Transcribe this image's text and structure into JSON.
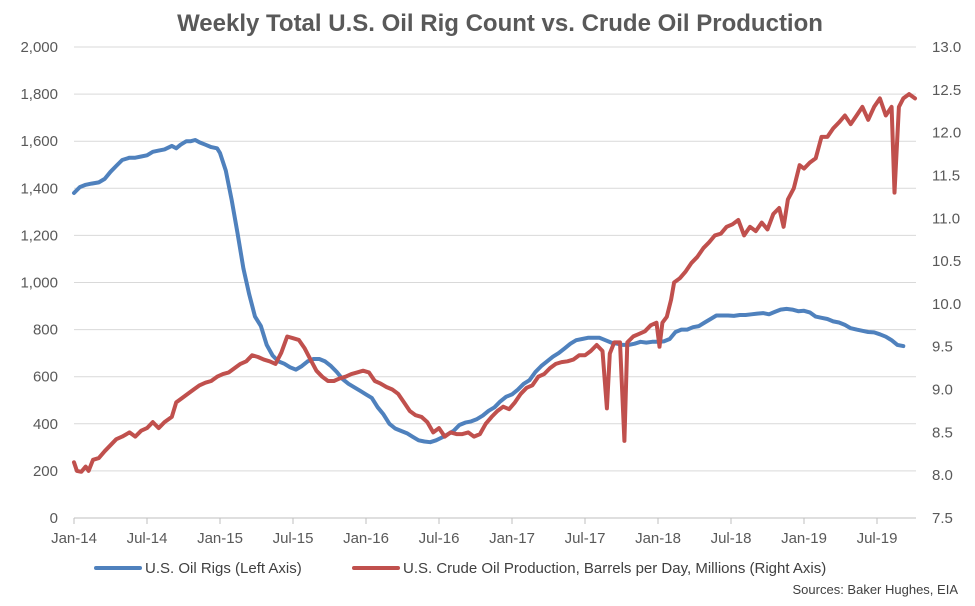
{
  "chart_data": {
    "type": "line",
    "title": "Weekly Total U.S. Oil Rig Count vs. Crude Oil Production",
    "source": "Sources: Baker Hughes, EIA",
    "x_ticks": [
      "Jan-14",
      "Jul-14",
      "Jan-15",
      "Jul-15",
      "Jan-16",
      "Jul-16",
      "Jan-17",
      "Jul-17",
      "Jan-18",
      "Jul-18",
      "Jan-19",
      "Jul-19"
    ],
    "x_range": [
      2014.0,
      2019.75
    ],
    "y_left": {
      "ticks": [
        "0",
        "200",
        "400",
        "600",
        "800",
        "1,000",
        "1,200",
        "1,400",
        "1,600",
        "1,800",
        "2,000"
      ],
      "range": [
        0,
        2000
      ]
    },
    "y_right": {
      "ticks": [
        "7.5",
        "8.0",
        "8.5",
        "9.0",
        "9.5",
        "10.0",
        "10.5",
        "11.0",
        "11.5",
        "12.0",
        "12.5",
        "13.0"
      ],
      "range": [
        7.5,
        13.0
      ]
    },
    "grid": true,
    "legend_position": "bottom",
    "series": [
      {
        "name": "U.S. Oil Rigs (Left Axis)",
        "axis": "left",
        "color": "#4F81BD",
        "points": [
          [
            2014.0,
            1380
          ],
          [
            2014.04,
            1405
          ],
          [
            2014.08,
            1415
          ],
          [
            2014.12,
            1420
          ],
          [
            2014.17,
            1425
          ],
          [
            2014.21,
            1440
          ],
          [
            2014.25,
            1470
          ],
          [
            2014.29,
            1495
          ],
          [
            2014.33,
            1520
          ],
          [
            2014.38,
            1530
          ],
          [
            2014.42,
            1530
          ],
          [
            2014.46,
            1535
          ],
          [
            2014.5,
            1540
          ],
          [
            2014.54,
            1555
          ],
          [
            2014.58,
            1560
          ],
          [
            2014.62,
            1565
          ],
          [
            2014.67,
            1580
          ],
          [
            2014.7,
            1570
          ],
          [
            2014.73,
            1585
          ],
          [
            2014.77,
            1600
          ],
          [
            2014.8,
            1600
          ],
          [
            2014.83,
            1605
          ],
          [
            2014.86,
            1595
          ],
          [
            2014.9,
            1585
          ],
          [
            2014.94,
            1575
          ],
          [
            2014.98,
            1570
          ],
          [
            2015.0,
            1550
          ],
          [
            2015.04,
            1475
          ],
          [
            2015.08,
            1350
          ],
          [
            2015.12,
            1210
          ],
          [
            2015.16,
            1060
          ],
          [
            2015.2,
            950
          ],
          [
            2015.24,
            855
          ],
          [
            2015.28,
            815
          ],
          [
            2015.32,
            735
          ],
          [
            2015.36,
            690
          ],
          [
            2015.4,
            665
          ],
          [
            2015.44,
            655
          ],
          [
            2015.48,
            640
          ],
          [
            2015.52,
            630
          ],
          [
            2015.56,
            645
          ],
          [
            2015.6,
            665
          ],
          [
            2015.64,
            675
          ],
          [
            2015.68,
            675
          ],
          [
            2015.72,
            665
          ],
          [
            2015.76,
            645
          ],
          [
            2015.8,
            620
          ],
          [
            2015.84,
            590
          ],
          [
            2015.88,
            570
          ],
          [
            2015.92,
            555
          ],
          [
            2015.96,
            540
          ],
          [
            2016.0,
            525
          ],
          [
            2016.04,
            510
          ],
          [
            2016.08,
            470
          ],
          [
            2016.12,
            440
          ],
          [
            2016.16,
            400
          ],
          [
            2016.2,
            380
          ],
          [
            2016.24,
            370
          ],
          [
            2016.28,
            360
          ],
          [
            2016.32,
            345
          ],
          [
            2016.36,
            330
          ],
          [
            2016.4,
            325
          ],
          [
            2016.44,
            322
          ],
          [
            2016.48,
            330
          ],
          [
            2016.52,
            342
          ],
          [
            2016.56,
            356
          ],
          [
            2016.6,
            370
          ],
          [
            2016.64,
            395
          ],
          [
            2016.68,
            405
          ],
          [
            2016.72,
            410
          ],
          [
            2016.76,
            420
          ],
          [
            2016.8,
            435
          ],
          [
            2016.84,
            455
          ],
          [
            2016.88,
            470
          ],
          [
            2016.92,
            495
          ],
          [
            2016.96,
            515
          ],
          [
            2017.0,
            525
          ],
          [
            2017.04,
            545
          ],
          [
            2017.08,
            570
          ],
          [
            2017.12,
            585
          ],
          [
            2017.16,
            620
          ],
          [
            2017.2,
            645
          ],
          [
            2017.24,
            665
          ],
          [
            2017.28,
            685
          ],
          [
            2017.32,
            700
          ],
          [
            2017.36,
            720
          ],
          [
            2017.4,
            740
          ],
          [
            2017.44,
            755
          ],
          [
            2017.48,
            760
          ],
          [
            2017.52,
            765
          ],
          [
            2017.56,
            765
          ],
          [
            2017.6,
            765
          ],
          [
            2017.64,
            755
          ],
          [
            2017.68,
            745
          ],
          [
            2017.72,
            740
          ],
          [
            2017.76,
            735
          ],
          [
            2017.8,
            735
          ],
          [
            2017.84,
            740
          ],
          [
            2017.88,
            748
          ],
          [
            2017.92,
            745
          ],
          [
            2017.96,
            748
          ],
          [
            2018.0,
            748
          ],
          [
            2018.04,
            750
          ],
          [
            2018.08,
            760
          ],
          [
            2018.12,
            790
          ],
          [
            2018.16,
            800
          ],
          [
            2018.2,
            800
          ],
          [
            2018.24,
            810
          ],
          [
            2018.28,
            815
          ],
          [
            2018.32,
            830
          ],
          [
            2018.36,
            845
          ],
          [
            2018.4,
            860
          ],
          [
            2018.44,
            860
          ],
          [
            2018.48,
            860
          ],
          [
            2018.52,
            858
          ],
          [
            2018.56,
            862
          ],
          [
            2018.6,
            862
          ],
          [
            2018.64,
            865
          ],
          [
            2018.68,
            868
          ],
          [
            2018.72,
            870
          ],
          [
            2018.76,
            865
          ],
          [
            2018.8,
            875
          ],
          [
            2018.84,
            885
          ],
          [
            2018.88,
            888
          ],
          [
            2018.92,
            885
          ],
          [
            2018.96,
            878
          ],
          [
            2019.0,
            880
          ],
          [
            2019.04,
            873
          ],
          [
            2019.08,
            855
          ],
          [
            2019.12,
            850
          ],
          [
            2019.16,
            845
          ],
          [
            2019.2,
            835
          ],
          [
            2019.24,
            830
          ],
          [
            2019.28,
            820
          ],
          [
            2019.32,
            806
          ],
          [
            2019.36,
            800
          ],
          [
            2019.4,
            795
          ],
          [
            2019.44,
            790
          ],
          [
            2019.48,
            788
          ],
          [
            2019.52,
            780
          ],
          [
            2019.56,
            770
          ],
          [
            2019.6,
            755
          ],
          [
            2019.64,
            735
          ],
          [
            2019.68,
            730
          ]
        ]
      },
      {
        "name": "U.S. Crude Oil Production, Barrels per Day, Millions (Right Axis)",
        "axis": "right",
        "color": "#C0504D",
        "points": [
          [
            2014.0,
            8.15
          ],
          [
            2014.02,
            8.05
          ],
          [
            2014.05,
            8.04
          ],
          [
            2014.08,
            8.1
          ],
          [
            2014.1,
            8.05
          ],
          [
            2014.13,
            8.18
          ],
          [
            2014.17,
            8.2
          ],
          [
            2014.21,
            8.28
          ],
          [
            2014.25,
            8.35
          ],
          [
            2014.29,
            8.42
          ],
          [
            2014.33,
            8.45
          ],
          [
            2014.38,
            8.5
          ],
          [
            2014.42,
            8.45
          ],
          [
            2014.46,
            8.52
          ],
          [
            2014.5,
            8.55
          ],
          [
            2014.54,
            8.62
          ],
          [
            2014.58,
            8.55
          ],
          [
            2014.62,
            8.62
          ],
          [
            2014.67,
            8.68
          ],
          [
            2014.7,
            8.85
          ],
          [
            2014.74,
            8.9
          ],
          [
            2014.78,
            8.95
          ],
          [
            2014.82,
            9.0
          ],
          [
            2014.86,
            9.05
          ],
          [
            2014.9,
            9.08
          ],
          [
            2014.94,
            9.1
          ],
          [
            2014.98,
            9.15
          ],
          [
            2015.02,
            9.18
          ],
          [
            2015.06,
            9.2
          ],
          [
            2015.1,
            9.25
          ],
          [
            2015.14,
            9.3
          ],
          [
            2015.18,
            9.33
          ],
          [
            2015.22,
            9.4
          ],
          [
            2015.26,
            9.38
          ],
          [
            2015.3,
            9.35
          ],
          [
            2015.34,
            9.33
          ],
          [
            2015.38,
            9.3
          ],
          [
            2015.42,
            9.43
          ],
          [
            2015.46,
            9.62
          ],
          [
            2015.5,
            9.6
          ],
          [
            2015.54,
            9.58
          ],
          [
            2015.58,
            9.48
          ],
          [
            2015.62,
            9.35
          ],
          [
            2015.66,
            9.22
          ],
          [
            2015.7,
            9.15
          ],
          [
            2015.74,
            9.1
          ],
          [
            2015.78,
            9.1
          ],
          [
            2015.82,
            9.13
          ],
          [
            2015.86,
            9.15
          ],
          [
            2015.9,
            9.18
          ],
          [
            2015.94,
            9.2
          ],
          [
            2015.98,
            9.22
          ],
          [
            2016.02,
            9.2
          ],
          [
            2016.06,
            9.1
          ],
          [
            2016.1,
            9.07
          ],
          [
            2016.14,
            9.03
          ],
          [
            2016.18,
            9.0
          ],
          [
            2016.22,
            8.95
          ],
          [
            2016.26,
            8.85
          ],
          [
            2016.3,
            8.75
          ],
          [
            2016.34,
            8.7
          ],
          [
            2016.38,
            8.68
          ],
          [
            2016.42,
            8.62
          ],
          [
            2016.46,
            8.5
          ],
          [
            2016.5,
            8.55
          ],
          [
            2016.54,
            8.45
          ],
          [
            2016.58,
            8.5
          ],
          [
            2016.62,
            8.48
          ],
          [
            2016.66,
            8.48
          ],
          [
            2016.7,
            8.5
          ],
          [
            2016.74,
            8.45
          ],
          [
            2016.78,
            8.48
          ],
          [
            2016.82,
            8.6
          ],
          [
            2016.86,
            8.68
          ],
          [
            2016.9,
            8.75
          ],
          [
            2016.94,
            8.8
          ],
          [
            2016.98,
            8.77
          ],
          [
            2017.02,
            8.85
          ],
          [
            2017.06,
            8.95
          ],
          [
            2017.1,
            9.02
          ],
          [
            2017.14,
            9.05
          ],
          [
            2017.18,
            9.15
          ],
          [
            2017.22,
            9.18
          ],
          [
            2017.26,
            9.25
          ],
          [
            2017.3,
            9.3
          ],
          [
            2017.34,
            9.32
          ],
          [
            2017.38,
            9.33
          ],
          [
            2017.42,
            9.35
          ],
          [
            2017.46,
            9.4
          ],
          [
            2017.5,
            9.4
          ],
          [
            2017.54,
            9.45
          ],
          [
            2017.58,
            9.52
          ],
          [
            2017.62,
            9.45
          ],
          [
            2017.65,
            8.78
          ],
          [
            2017.67,
            9.42
          ],
          [
            2017.7,
            9.55
          ],
          [
            2017.74,
            9.55
          ],
          [
            2017.77,
            8.4
          ],
          [
            2017.79,
            9.55
          ],
          [
            2017.83,
            9.62
          ],
          [
            2017.87,
            9.65
          ],
          [
            2017.91,
            9.68
          ],
          [
            2017.95,
            9.75
          ],
          [
            2017.99,
            9.78
          ],
          [
            2018.01,
            9.5
          ],
          [
            2018.03,
            9.78
          ],
          [
            2018.06,
            9.85
          ],
          [
            2018.09,
            10.05
          ],
          [
            2018.11,
            10.25
          ],
          [
            2018.15,
            10.3
          ],
          [
            2018.19,
            10.38
          ],
          [
            2018.23,
            10.48
          ],
          [
            2018.27,
            10.55
          ],
          [
            2018.31,
            10.65
          ],
          [
            2018.35,
            10.72
          ],
          [
            2018.39,
            10.8
          ],
          [
            2018.43,
            10.82
          ],
          [
            2018.47,
            10.9
          ],
          [
            2018.51,
            10.93
          ],
          [
            2018.55,
            10.98
          ],
          [
            2018.59,
            10.8
          ],
          [
            2018.63,
            10.9
          ],
          [
            2018.67,
            10.85
          ],
          [
            2018.71,
            10.95
          ],
          [
            2018.75,
            10.87
          ],
          [
            2018.79,
            11.05
          ],
          [
            2018.83,
            11.12
          ],
          [
            2018.86,
            10.9
          ],
          [
            2018.89,
            11.22
          ],
          [
            2018.93,
            11.35
          ],
          [
            2018.97,
            11.62
          ],
          [
            2019.0,
            11.58
          ],
          [
            2019.04,
            11.65
          ],
          [
            2019.08,
            11.7
          ],
          [
            2019.12,
            11.95
          ],
          [
            2019.16,
            11.95
          ],
          [
            2019.2,
            12.05
          ],
          [
            2019.24,
            12.12
          ],
          [
            2019.28,
            12.2
          ],
          [
            2019.32,
            12.1
          ],
          [
            2019.36,
            12.2
          ],
          [
            2019.4,
            12.3
          ],
          [
            2019.44,
            12.15
          ],
          [
            2019.48,
            12.3
          ],
          [
            2019.52,
            12.4
          ],
          [
            2019.56,
            12.2
          ],
          [
            2019.6,
            12.3
          ],
          [
            2019.62,
            11.3
          ],
          [
            2019.65,
            12.3
          ],
          [
            2019.68,
            12.4
          ],
          [
            2019.72,
            12.45
          ],
          [
            2019.76,
            12.4
          ]
        ]
      }
    ]
  }
}
